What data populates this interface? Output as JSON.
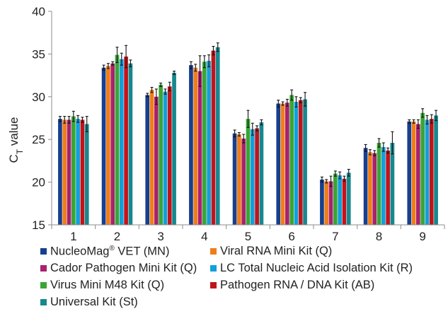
{
  "chart_data": {
    "type": "bar",
    "ylabel_main": "C",
    "ylabel_sub": "T",
    "ylabel_rest": " value",
    "xlabel": "",
    "ylim": [
      15,
      40
    ],
    "yticks": [
      "15",
      "20",
      "25",
      "30",
      "35",
      "40"
    ],
    "categories": [
      "1",
      "2",
      "3",
      "4",
      "5",
      "6",
      "7",
      "8",
      "9"
    ],
    "grid": false,
    "legend_position": "bottom",
    "series": [
      {
        "name": "NucleoMag® VET (MN)",
        "name_main": "NucleoMag",
        "name_sup": "®",
        "name_rest": " VET (MN)",
        "color": "#173f8c",
        "values": [
          27.4,
          33.4,
          30.2,
          33.7,
          25.7,
          29.2,
          20.3,
          24.0,
          27.1
        ],
        "errors": [
          0.3,
          0.3,
          0.2,
          0.4,
          0.4,
          0.4,
          0.3,
          0.4,
          0.2
        ]
      },
      {
        "name": "Viral RNA Mini Kit (Q)",
        "color": "#ef7d1a",
        "values": [
          27.3,
          33.6,
          30.8,
          33.4,
          25.6,
          29.2,
          20.1,
          23.5,
          27.1
        ],
        "errors": [
          0.4,
          0.3,
          0.3,
          0.4,
          0.2,
          0.2,
          0.2,
          0.3,
          0.2
        ]
      },
      {
        "name": "Cador Pathogen Mini Kit (Q)",
        "color": "#a8226e",
        "values": [
          27.3,
          33.9,
          30.0,
          33.0,
          25.1,
          29.3,
          20.1,
          23.4,
          26.8
        ],
        "errors": [
          0.4,
          0.2,
          0.9,
          1.8,
          0.5,
          0.4,
          0.6,
          0.3,
          0.5
        ]
      },
      {
        "name": "Virus Mini M48 Kit (Q)",
        "color": "#3aa535",
        "values": [
          27.7,
          34.9,
          31.4,
          34.1,
          27.4,
          30.2,
          21.0,
          24.6,
          28.1
        ],
        "errors": [
          0.6,
          0.9,
          0.2,
          0.7,
          1.0,
          0.6,
          0.3,
          0.5,
          0.5
        ]
      },
      {
        "name": "LC Total Nucleic Acid Isolation Kit (R)",
        "color": "#129fdb",
        "values": [
          27.4,
          34.4,
          30.6,
          34.2,
          26.2,
          29.4,
          20.8,
          24.1,
          27.3
        ],
        "errors": [
          0.4,
          0.7,
          0.3,
          0.7,
          0.7,
          0.6,
          0.4,
          0.5,
          0.5
        ]
      },
      {
        "name": "Pathogen RNA / DNA Kit (AB)",
        "color": "#c0141b",
        "values": [
          27.3,
          34.7,
          31.2,
          35.4,
          26.3,
          29.6,
          20.4,
          23.7,
          27.4
        ],
        "errors": [
          0.3,
          1.3,
          0.5,
          0.5,
          0.3,
          0.3,
          0.3,
          0.3,
          0.5
        ]
      },
      {
        "name": "Universal Kit (St)",
        "color": "#17888f",
        "values": [
          26.8,
          33.9,
          32.8,
          35.8,
          27.0,
          29.7,
          21.1,
          24.6,
          27.8
        ],
        "errors": [
          0.9,
          0.4,
          0.2,
          0.5,
          0.3,
          0.8,
          0.4,
          1.3,
          0.6
        ]
      }
    ]
  }
}
